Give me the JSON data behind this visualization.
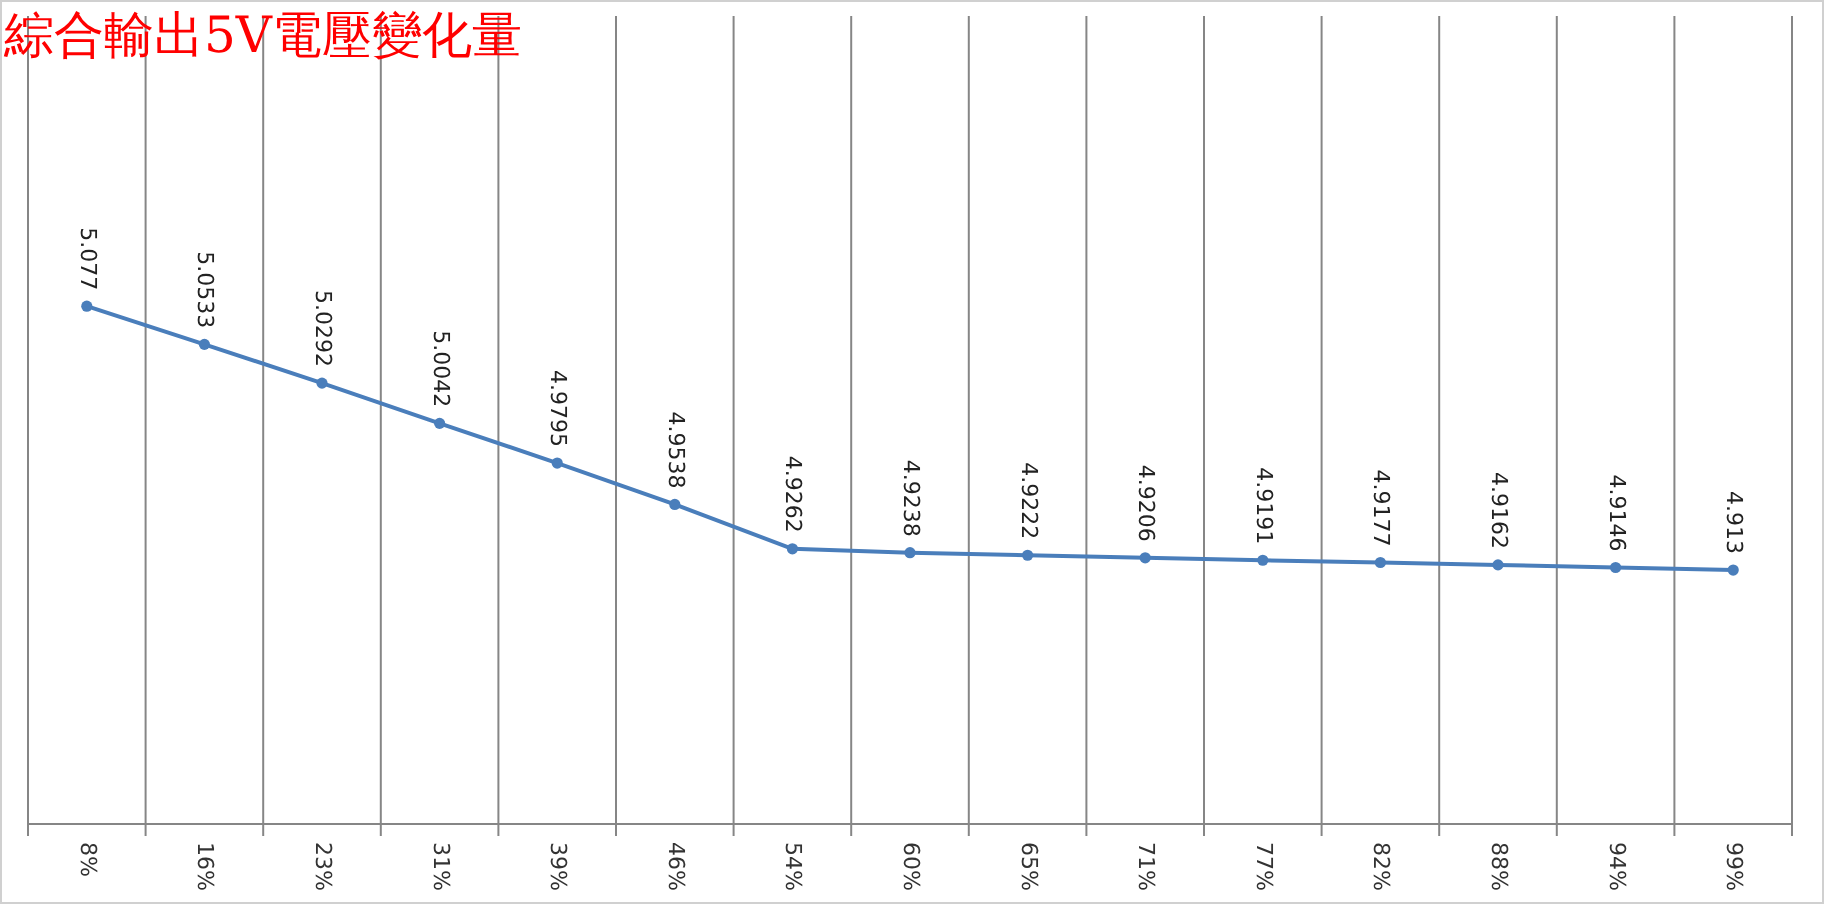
{
  "chart_data": {
    "type": "line",
    "title": "綜合輸出5V電壓變化量",
    "categories": [
      "8%",
      "16%",
      "23%",
      "31%",
      "39%",
      "46%",
      "54%",
      "60%",
      "65%",
      "71%",
      "77%",
      "82%",
      "88%",
      "94%",
      "99%"
    ],
    "values": [
      5.077,
      5.0533,
      5.0292,
      5.0042,
      4.9795,
      4.9538,
      4.9262,
      4.9238,
      4.9222,
      4.9206,
      4.9191,
      4.9177,
      4.9162,
      4.9146,
      4.913
    ],
    "color": "#4a7ebb",
    "marker": "circle",
    "data_labels": true,
    "grid": "x",
    "relative": false
  }
}
